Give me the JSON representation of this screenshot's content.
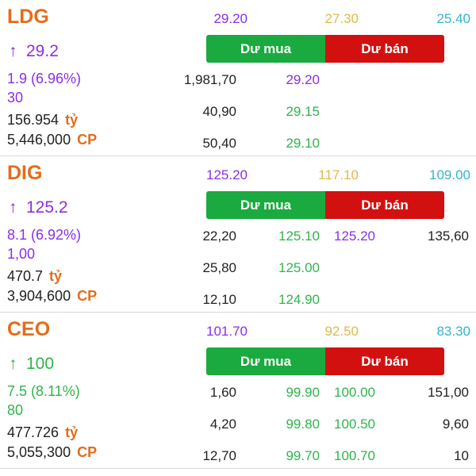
{
  "stocks": [
    {
      "symbol": "LDG",
      "price": "29.2",
      "arrow": "↑",
      "price_color": "purple",
      "change": "1.9 (6.96%)",
      "volume": "30",
      "value": "156.954",
      "value_unit": "tỷ",
      "shares": "5,446,000",
      "shares_unit": "CP",
      "ceiling": "29.20",
      "reference": "27.30",
      "floor": "25.40",
      "buy_label": "Dư mua",
      "sell_label": "Dư bán",
      "rows": [
        {
          "buy_vol": "1,981,70",
          "buy_price": "29.20",
          "buy_color": "purple",
          "sell_price": "",
          "sell_color": "",
          "sell_vol": ""
        },
        {
          "buy_vol": "40,90",
          "buy_price": "29.15",
          "buy_color": "green",
          "sell_price": "",
          "sell_color": "",
          "sell_vol": ""
        },
        {
          "buy_vol": "50,40",
          "buy_price": "29.10",
          "buy_color": "green",
          "sell_price": "",
          "sell_color": "",
          "sell_vol": ""
        }
      ]
    },
    {
      "symbol": "DIG",
      "price": "125.2",
      "arrow": "↑",
      "price_color": "purple",
      "change": "8.1 (6.92%)",
      "volume": "1,00",
      "value": "470.7",
      "value_unit": "tỷ",
      "shares": "3,904,600",
      "shares_unit": "CP",
      "ceiling": "125.20",
      "reference": "117.10",
      "floor": "109.00",
      "buy_label": "Dư mua",
      "sell_label": "Dư bán",
      "rows": [
        {
          "buy_vol": "22,20",
          "buy_price": "125.10",
          "buy_color": "green",
          "sell_price": "125.20",
          "sell_color": "purple",
          "sell_vol": "135,60"
        },
        {
          "buy_vol": "25,80",
          "buy_price": "125.00",
          "buy_color": "green",
          "sell_price": "",
          "sell_color": "",
          "sell_vol": ""
        },
        {
          "buy_vol": "12,10",
          "buy_price": "124.90",
          "buy_color": "green",
          "sell_price": "",
          "sell_color": "",
          "sell_vol": ""
        }
      ]
    },
    {
      "symbol": "CEO",
      "price": "100",
      "arrow": "↑",
      "price_color": "green",
      "change": "7.5 (8.11%)",
      "volume": "80",
      "value": "477.726",
      "value_unit": "tỷ",
      "shares": "5,055,300",
      "shares_unit": "CP",
      "ceiling": "101.70",
      "reference": "92.50",
      "floor": "83.30",
      "buy_label": "Dư mua",
      "sell_label": "Dư bán",
      "rows": [
        {
          "buy_vol": "1,60",
          "buy_price": "99.90",
          "buy_color": "green",
          "sell_price": "100.00",
          "sell_color": "green",
          "sell_vol": "151,00"
        },
        {
          "buy_vol": "4,20",
          "buy_price": "99.80",
          "buy_color": "green",
          "sell_price": "100.50",
          "sell_color": "green",
          "sell_vol": "9,60"
        },
        {
          "buy_vol": "12,70",
          "buy_price": "99.70",
          "buy_color": "green",
          "sell_price": "100.70",
          "sell_color": "green",
          "sell_vol": "10"
        }
      ]
    }
  ],
  "colors": {
    "symbol": "#e46c1a",
    "ceiling": "#8b2ee6",
    "reference": "#e0b84b",
    "floor": "#32b5d1",
    "up": "#2fb44b",
    "buy_button": "#1aaa3f",
    "sell_button": "#d31010"
  },
  "icons": {
    "up_arrow": "up-arrow-icon"
  }
}
